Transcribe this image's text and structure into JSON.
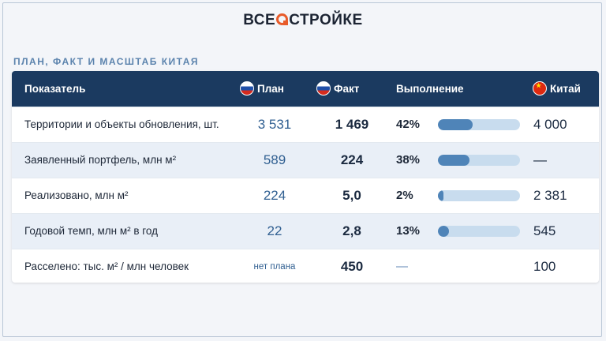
{
  "logo": {
    "part1": "ВСЕ",
    "part2": "СТРОЙКЕ"
  },
  "subtitle": "ПЛАН, ФАКТ И МАСШТАБ КИТАЯ",
  "headers": {
    "label": "Показатель",
    "plan": "План",
    "fact": "Факт",
    "completion": "Выполнение",
    "china": "Китай"
  },
  "rows": [
    {
      "label": "Территории и объекты обновления, шт.",
      "plan": "3 531",
      "fact": "1 469",
      "pct": "42%",
      "progress": 0.42,
      "china": "4 000"
    },
    {
      "label": "Заявленный портфель, млн м²",
      "plan": "589",
      "fact": "224",
      "pct": "38%",
      "progress": 0.38,
      "china": "—"
    },
    {
      "label": "Реализовано, млн м²",
      "plan": "224",
      "fact": "5,0",
      "pct": "2%",
      "progress": 0.02,
      "china": "2 381"
    },
    {
      "label": "Годовой темп, млн м² в год",
      "plan": "22",
      "fact": "2,8",
      "pct": "13%",
      "progress": 0.13,
      "china": "545"
    },
    {
      "label": "Расселено: тыс. м² / млн человек",
      "plan": "нет плана",
      "fact": "450",
      "pct": "—",
      "progress": null,
      "china": "100"
    }
  ],
  "colors": {
    "header_bg": "#1b3a60",
    "accent": "#e85b2a",
    "bar_fill": "#4f84b8",
    "bar_track": "#c8dcee"
  },
  "icons": {
    "plan": "russia-flag-icon",
    "fact": "russia-flag-icon",
    "china": "china-flag-icon"
  }
}
